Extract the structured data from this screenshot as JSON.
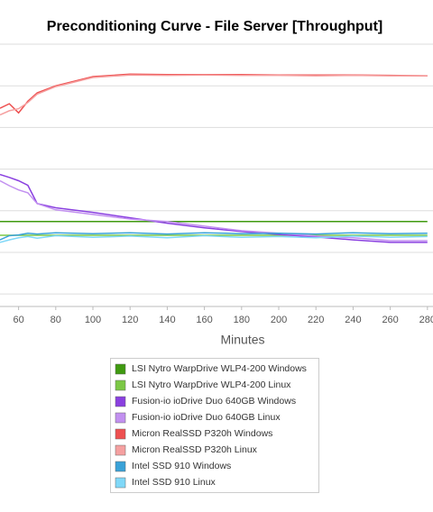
{
  "chart_data": {
    "type": "line",
    "title": "Preconditioning Curve - File Server [Throughput]",
    "x_label": "Minutes",
    "x": [
      50,
      55,
      60,
      65,
      70,
      80,
      100,
      120,
      140,
      160,
      180,
      200,
      220,
      240,
      260,
      280
    ],
    "xlim": [
      50,
      283
    ],
    "xticks": [
      60,
      80,
      100,
      120,
      140,
      160,
      180,
      200,
      220,
      240,
      260,
      280
    ],
    "ylim": [
      0.7,
      7
    ],
    "ygrid": [
      1,
      2,
      3,
      4,
      5,
      6,
      7
    ],
    "grid": true,
    "series": [
      {
        "name": "LSI Nytro WarpDrive WLP4-200 Windows",
        "color": "#3f9a10",
        "values": [
          2.74,
          2.74,
          2.74,
          2.74,
          2.74,
          2.74,
          2.74,
          2.74,
          2.74,
          2.74,
          2.74,
          2.74,
          2.74,
          2.74,
          2.74,
          2.74
        ]
      },
      {
        "name": "LSI Nytro WarpDrive WLP4-200 Linux",
        "color": "#7cc846",
        "values": [
          2.41,
          2.41,
          2.41,
          2.41,
          2.41,
          2.41,
          2.41,
          2.41,
          2.41,
          2.41,
          2.41,
          2.41,
          2.41,
          2.41,
          2.41,
          2.41
        ]
      },
      {
        "name": "Fusion-io ioDrive Duo 640GB Windows",
        "color": "#8a40e0",
        "values": [
          3.87,
          3.8,
          3.72,
          3.61,
          3.17,
          3.07,
          2.96,
          2.83,
          2.7,
          2.59,
          2.5,
          2.43,
          2.37,
          2.3,
          2.24,
          2.24
        ]
      },
      {
        "name": "Fusion-io ioDrive Duo 640GB Linux",
        "color": "#c290f0",
        "values": [
          3.72,
          3.6,
          3.5,
          3.43,
          3.17,
          3.02,
          2.91,
          2.8,
          2.74,
          2.63,
          2.52,
          2.46,
          2.39,
          2.35,
          2.28,
          2.28
        ]
      },
      {
        "name": "Micron RealSSD P320h Windows",
        "color": "#ee5050",
        "values": [
          5.46,
          5.57,
          5.35,
          5.63,
          5.83,
          6.0,
          6.22,
          6.28,
          6.27,
          6.27,
          6.27,
          6.26,
          6.26,
          6.26,
          6.25,
          6.24
        ]
      },
      {
        "name": "Micron RealSSD P320h Linux",
        "color": "#f5a0a0",
        "values": [
          5.3,
          5.4,
          5.45,
          5.6,
          5.8,
          5.98,
          6.2,
          6.26,
          6.25,
          6.26,
          6.25,
          6.25,
          6.24,
          6.25,
          6.24,
          6.24
        ]
      },
      {
        "name": "Intel SSD 910 Windows",
        "color": "#3aa2d8",
        "values": [
          2.3,
          2.4,
          2.42,
          2.46,
          2.44,
          2.47,
          2.45,
          2.47,
          2.44,
          2.47,
          2.45,
          2.46,
          2.44,
          2.47,
          2.45,
          2.46
        ]
      },
      {
        "name": "Intel SSD 910 Linux",
        "color": "#80d8f8",
        "values": [
          2.24,
          2.3,
          2.35,
          2.38,
          2.34,
          2.4,
          2.36,
          2.39,
          2.35,
          2.4,
          2.36,
          2.38,
          2.35,
          2.39,
          2.36,
          2.38
        ]
      }
    ]
  }
}
